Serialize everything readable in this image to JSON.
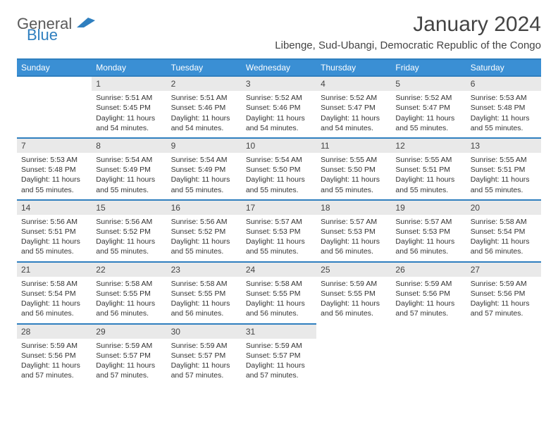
{
  "brand": {
    "text_a": "General",
    "text_b": "Blue",
    "color_a": "#5a5a5a",
    "color_b": "#2f7fbf"
  },
  "header": {
    "month_title": "January 2024",
    "location": "Libenge, Sud-Ubangi, Democratic Republic of the Congo"
  },
  "styling": {
    "header_bar_color": "#3a8fd4",
    "header_text_color": "#ffffff",
    "rule_color": "#2f7fbf",
    "daynum_bg": "#e9e9e9",
    "page_bg": "#ffffff",
    "body_text_color": "#333333",
    "title_color": "#444444",
    "dow_fontsize": 12,
    "cell_fontsize": 10.5,
    "title_fontsize": 30,
    "location_fontsize": 15
  },
  "days_of_week": [
    "Sunday",
    "Monday",
    "Tuesday",
    "Wednesday",
    "Thursday",
    "Friday",
    "Saturday"
  ],
  "leading_blanks": 1,
  "days": [
    {
      "n": 1,
      "sunrise": "5:51 AM",
      "sunset": "5:45 PM",
      "daylight": "11 hours and 54 minutes."
    },
    {
      "n": 2,
      "sunrise": "5:51 AM",
      "sunset": "5:46 PM",
      "daylight": "11 hours and 54 minutes."
    },
    {
      "n": 3,
      "sunrise": "5:52 AM",
      "sunset": "5:46 PM",
      "daylight": "11 hours and 54 minutes."
    },
    {
      "n": 4,
      "sunrise": "5:52 AM",
      "sunset": "5:47 PM",
      "daylight": "11 hours and 54 minutes."
    },
    {
      "n": 5,
      "sunrise": "5:52 AM",
      "sunset": "5:47 PM",
      "daylight": "11 hours and 55 minutes."
    },
    {
      "n": 6,
      "sunrise": "5:53 AM",
      "sunset": "5:48 PM",
      "daylight": "11 hours and 55 minutes."
    },
    {
      "n": 7,
      "sunrise": "5:53 AM",
      "sunset": "5:48 PM",
      "daylight": "11 hours and 55 minutes."
    },
    {
      "n": 8,
      "sunrise": "5:54 AM",
      "sunset": "5:49 PM",
      "daylight": "11 hours and 55 minutes."
    },
    {
      "n": 9,
      "sunrise": "5:54 AM",
      "sunset": "5:49 PM",
      "daylight": "11 hours and 55 minutes."
    },
    {
      "n": 10,
      "sunrise": "5:54 AM",
      "sunset": "5:50 PM",
      "daylight": "11 hours and 55 minutes."
    },
    {
      "n": 11,
      "sunrise": "5:55 AM",
      "sunset": "5:50 PM",
      "daylight": "11 hours and 55 minutes."
    },
    {
      "n": 12,
      "sunrise": "5:55 AM",
      "sunset": "5:51 PM",
      "daylight": "11 hours and 55 minutes."
    },
    {
      "n": 13,
      "sunrise": "5:55 AM",
      "sunset": "5:51 PM",
      "daylight": "11 hours and 55 minutes."
    },
    {
      "n": 14,
      "sunrise": "5:56 AM",
      "sunset": "5:51 PM",
      "daylight": "11 hours and 55 minutes."
    },
    {
      "n": 15,
      "sunrise": "5:56 AM",
      "sunset": "5:52 PM",
      "daylight": "11 hours and 55 minutes."
    },
    {
      "n": 16,
      "sunrise": "5:56 AM",
      "sunset": "5:52 PM",
      "daylight": "11 hours and 55 minutes."
    },
    {
      "n": 17,
      "sunrise": "5:57 AM",
      "sunset": "5:53 PM",
      "daylight": "11 hours and 55 minutes."
    },
    {
      "n": 18,
      "sunrise": "5:57 AM",
      "sunset": "5:53 PM",
      "daylight": "11 hours and 56 minutes."
    },
    {
      "n": 19,
      "sunrise": "5:57 AM",
      "sunset": "5:53 PM",
      "daylight": "11 hours and 56 minutes."
    },
    {
      "n": 20,
      "sunrise": "5:58 AM",
      "sunset": "5:54 PM",
      "daylight": "11 hours and 56 minutes."
    },
    {
      "n": 21,
      "sunrise": "5:58 AM",
      "sunset": "5:54 PM",
      "daylight": "11 hours and 56 minutes."
    },
    {
      "n": 22,
      "sunrise": "5:58 AM",
      "sunset": "5:55 PM",
      "daylight": "11 hours and 56 minutes."
    },
    {
      "n": 23,
      "sunrise": "5:58 AM",
      "sunset": "5:55 PM",
      "daylight": "11 hours and 56 minutes."
    },
    {
      "n": 24,
      "sunrise": "5:58 AM",
      "sunset": "5:55 PM",
      "daylight": "11 hours and 56 minutes."
    },
    {
      "n": 25,
      "sunrise": "5:59 AM",
      "sunset": "5:55 PM",
      "daylight": "11 hours and 56 minutes."
    },
    {
      "n": 26,
      "sunrise": "5:59 AM",
      "sunset": "5:56 PM",
      "daylight": "11 hours and 57 minutes."
    },
    {
      "n": 27,
      "sunrise": "5:59 AM",
      "sunset": "5:56 PM",
      "daylight": "11 hours and 57 minutes."
    },
    {
      "n": 28,
      "sunrise": "5:59 AM",
      "sunset": "5:56 PM",
      "daylight": "11 hours and 57 minutes."
    },
    {
      "n": 29,
      "sunrise": "5:59 AM",
      "sunset": "5:57 PM",
      "daylight": "11 hours and 57 minutes."
    },
    {
      "n": 30,
      "sunrise": "5:59 AM",
      "sunset": "5:57 PM",
      "daylight": "11 hours and 57 minutes."
    },
    {
      "n": 31,
      "sunrise": "5:59 AM",
      "sunset": "5:57 PM",
      "daylight": "11 hours and 57 minutes."
    }
  ],
  "labels": {
    "sunrise": "Sunrise:",
    "sunset": "Sunset:",
    "daylight": "Daylight:"
  }
}
